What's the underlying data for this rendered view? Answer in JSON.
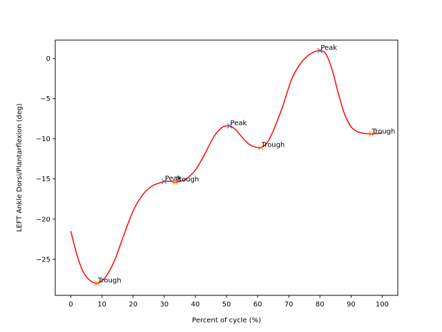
{
  "chart_data": {
    "type": "line",
    "xlabel": "Percent of cycle (%)",
    "ylabel": "LEFT Ankle Dorsi/Plantarflexion (deg)",
    "xlim": [
      -5,
      105
    ],
    "ylim": [
      -29.5,
      2.3
    ],
    "xticks": [
      0,
      10,
      20,
      30,
      40,
      50,
      60,
      70,
      80,
      90,
      100
    ],
    "yticks": [
      -25,
      -20,
      -15,
      -10,
      -5,
      0
    ],
    "grid": false,
    "legend": "none",
    "colors": {
      "line": "#ff0000",
      "peak": "#1f77b4",
      "trough": "#ff7f0e"
    },
    "series": [
      {
        "x": [
          0,
          2,
          4,
          6,
          8.5,
          11,
          14,
          17,
          20,
          23,
          26,
          28.5,
          30,
          32,
          33.5,
          35,
          37,
          40,
          43,
          46,
          48.5,
          51,
          53,
          55,
          57,
          59,
          61,
          63,
          65,
          68,
          71,
          74,
          77,
          80,
          82,
          84,
          86,
          88,
          90,
          92,
          94,
          96.5,
          98,
          100
        ],
        "y": [
          -21.5,
          -24.5,
          -26.6,
          -27.6,
          -28.0,
          -27.3,
          -25.2,
          -22.0,
          -19.0,
          -17.0,
          -15.9,
          -15.5,
          -15.3,
          -15.3,
          -15.4,
          -15.3,
          -15.0,
          -13.9,
          -11.9,
          -9.7,
          -8.6,
          -8.4,
          -8.9,
          -9.8,
          -10.6,
          -11.0,
          -11.1,
          -10.5,
          -9.0,
          -6.0,
          -2.5,
          -0.5,
          0.6,
          1.0,
          0.5,
          -1.5,
          -4.5,
          -7.0,
          -8.5,
          -9.1,
          -9.3,
          -9.4,
          -9.35,
          -9.3
        ]
      }
    ],
    "peaks": [
      {
        "label": "Peak",
        "x": 30,
        "y": -15.3
      },
      {
        "label": "Peak",
        "x": 51,
        "y": -8.4
      },
      {
        "label": "Peak",
        "x": 80,
        "y": 1.0
      }
    ],
    "troughs": [
      {
        "label": "Trough",
        "x": 8.5,
        "y": -28.0
      },
      {
        "label": "Trough",
        "x": 33.5,
        "y": -15.4
      },
      {
        "label": "Trough",
        "x": 61,
        "y": -11.1
      },
      {
        "label": "Trough",
        "x": 96.5,
        "y": -9.4
      }
    ]
  }
}
